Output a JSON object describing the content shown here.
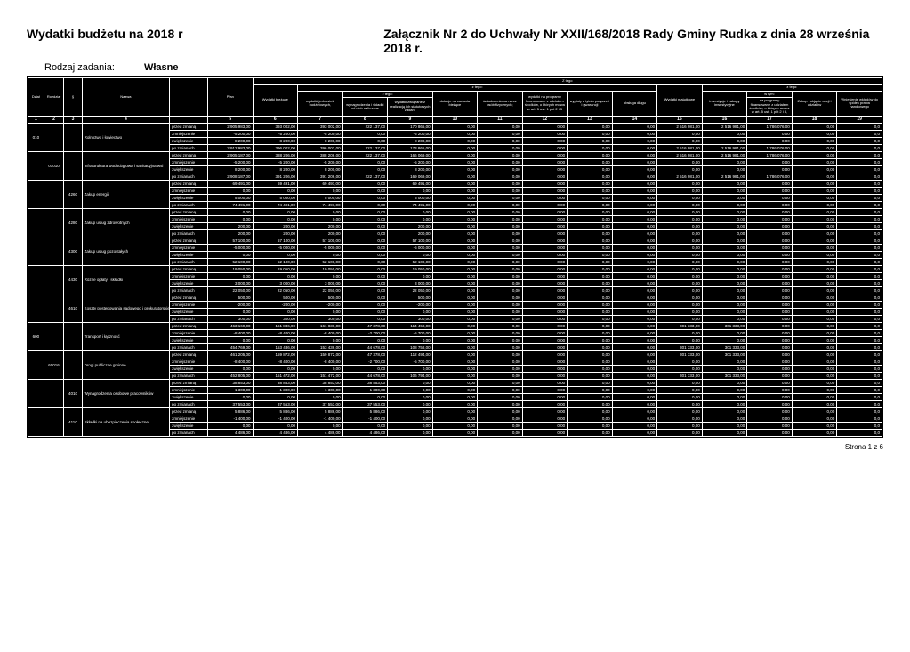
{
  "header": {
    "title_left": "Wydatki budżetu na 2018 r",
    "title_right": "Załącznik Nr 2 do Uchwały Nr XXII/168/2018 Rady Gminy Rudka z dnia 28 września 2018 r.",
    "rodzaj_label": "Rodzaj zadania:",
    "rodzaj_value": "Własne"
  },
  "columns": {
    "dzial": "Dział",
    "rozdzial": "Rozdział",
    "par": "§",
    "nazwa": "Nazwa",
    "plan": "Plan",
    "ztego_top": "Z tego",
    "wydatki_biezace": "Wydatki bieżące",
    "ztego1": "z tego:",
    "wydatki_jednostek": "wydatki jednostek budżetowych,",
    "ztego2": "z tego:",
    "wynagrodzenia": "wynagrodzenia i składki od nich naliczane",
    "wydatki_zwiazane": "wydatki związane z realizacją ich statutowych zadań;",
    "dotacje": "dotacje na zadania bieżące",
    "swiadczenia": "świadczenia na rzecz osób fizycznych;",
    "wydatki_programy": "wydatki na programy finansowane z udziałem środków, o których mowa w art. 5 ust. 1 pkt 2 i 3",
    "wyplaty": "wypłaty z tytułu poręczeń i gwarancji",
    "obsluga": "obsługa długu",
    "wydatki_majatkowe": "Wydatki majątkowe",
    "ztego3": "z tego:",
    "inwestycje": "inwestycje i zakupy inwestycyjne",
    "wtym": "w tym:",
    "na_programy": "na programy finansowane z udziałem środków, o których mowa w art. 5 ust. 1 pkt 2 i 3,",
    "zakup_akcji": "Zakup i objęcie akcji i udziałów",
    "wniesienie": "Wniesienie wkładów do spółek prawa handlowego"
  },
  "row_types": [
    "przed zmianą",
    "zmniejszenie",
    "zwiększenie",
    "po zmianach"
  ],
  "groups": [
    {
      "dzial": "010",
      "rozdzial": "",
      "par": "",
      "nazwa": "Rolnictwo i łowiectwo",
      "rows": [
        [
          "2 905 983,00",
          "393 002,00",
          "393 002,00",
          "222 137,00",
          "170 865,00",
          "0,00",
          "0,00",
          "0,00",
          "0,00",
          "0,00",
          "2 516 981,00",
          "2 516 981,00",
          "1 786 076,00",
          "0,00",
          "0,0"
        ],
        [
          "-5 200,00",
          "-5 200,00",
          "-5 200,00",
          "0,00",
          "-5 200,00",
          "0,00",
          "0,00",
          "0,00",
          "0,00",
          "0,00",
          "0,00",
          "0,00",
          "0,00",
          "0,00",
          "0,0"
        ],
        [
          "8 200,00",
          "8 200,00",
          "8 200,00",
          "0,00",
          "8 200,00",
          "0,00",
          "0,00",
          "0,00",
          "0,00",
          "0,00",
          "0,00",
          "0,00",
          "0,00",
          "0,00",
          "0,0"
        ],
        [
          "2 912 983,00",
          "396 002,00",
          "396 002,00",
          "222 137,00",
          "173 865,00",
          "0,00",
          "0,00",
          "0,00",
          "0,00",
          "0,00",
          "2 516 981,00",
          "2 516 981,00",
          "1 786 076,00",
          "0,00",
          "0,0"
        ]
      ]
    },
    {
      "dzial": "",
      "rozdzial": "01010",
      "par": "",
      "nazwa": "Infrastruktura wodociągowa i sanitacyjna wsi",
      "rows": [
        [
          "2 905 187,00",
          "388 206,00",
          "388 206,00",
          "222 137,00",
          "166 069,00",
          "0,00",
          "0,00",
          "0,00",
          "0,00",
          "0,00",
          "2 516 981,00",
          "2 516 981,00",
          "1 786 076,00",
          "0,00",
          "0,0"
        ],
        [
          "-5 200,00",
          "-5 200,00",
          "-5 200,00",
          "0,00",
          "-5 200,00",
          "0,00",
          "0,00",
          "0,00",
          "0,00",
          "0,00",
          "0,00",
          "0,00",
          "0,00",
          "0,00",
          "0,0"
        ],
        [
          "8 200,00",
          "8 200,00",
          "8 200,00",
          "0,00",
          "8 200,00",
          "0,00",
          "0,00",
          "0,00",
          "0,00",
          "0,00",
          "0,00",
          "0,00",
          "0,00",
          "0,00",
          "0,0"
        ],
        [
          "2 908 187,00",
          "391 206,00",
          "391 206,00",
          "222 137,00",
          "169 069,00",
          "0,00",
          "0,00",
          "0,00",
          "0,00",
          "0,00",
          "2 516 981,00",
          "2 516 981,00",
          "1 786 076,00",
          "0,00",
          "0,0"
        ]
      ]
    },
    {
      "dzial": "",
      "rozdzial": "",
      "par": "4260",
      "nazwa": "Zakup energii",
      "rows": [
        [
          "69 491,00",
          "69 491,00",
          "69 491,00",
          "0,00",
          "69 491,00",
          "0,00",
          "0,00",
          "0,00",
          "0,00",
          "0,00",
          "0,00",
          "0,00",
          "0,00",
          "0,00",
          "0,0"
        ],
        [
          "0,00",
          "0,00",
          "0,00",
          "0,00",
          "0,00",
          "0,00",
          "0,00",
          "0,00",
          "0,00",
          "0,00",
          "0,00",
          "0,00",
          "0,00",
          "0,00",
          "0,0"
        ],
        [
          "5 000,00",
          "5 000,00",
          "5 000,00",
          "0,00",
          "5 000,00",
          "0,00",
          "0,00",
          "0,00",
          "0,00",
          "0,00",
          "0,00",
          "0,00",
          "0,00",
          "0,00",
          "0,0"
        ],
        [
          "74 491,00",
          "74 491,00",
          "74 491,00",
          "0,00",
          "74 491,00",
          "0,00",
          "0,00",
          "0,00",
          "0,00",
          "0,00",
          "0,00",
          "0,00",
          "0,00",
          "0,00",
          "0,0"
        ]
      ]
    },
    {
      "dzial": "",
      "rozdzial": "",
      "par": "4280",
      "nazwa": "Zakup usług zdrowotnych",
      "rows": [
        [
          "0,00",
          "0,00",
          "0,00",
          "0,00",
          "0,00",
          "0,00",
          "0,00",
          "0,00",
          "0,00",
          "0,00",
          "0,00",
          "0,00",
          "0,00",
          "0,00",
          "0,0"
        ],
        [
          "0,00",
          "0,00",
          "0,00",
          "0,00",
          "0,00",
          "0,00",
          "0,00",
          "0,00",
          "0,00",
          "0,00",
          "0,00",
          "0,00",
          "0,00",
          "0,00",
          "0,0"
        ],
        [
          "200,00",
          "200,00",
          "200,00",
          "0,00",
          "200,00",
          "0,00",
          "0,00",
          "0,00",
          "0,00",
          "0,00",
          "0,00",
          "0,00",
          "0,00",
          "0,00",
          "0,0"
        ],
        [
          "200,00",
          "200,00",
          "200,00",
          "0,00",
          "200,00",
          "0,00",
          "0,00",
          "0,00",
          "0,00",
          "0,00",
          "0,00",
          "0,00",
          "0,00",
          "0,00",
          "0,0"
        ]
      ]
    },
    {
      "dzial": "",
      "rozdzial": "",
      "par": "4300",
      "nazwa": "Zakup usług pozostałych",
      "rows": [
        [
          "57 100,00",
          "57 100,00",
          "57 100,00",
          "0,00",
          "57 100,00",
          "0,00",
          "0,00",
          "0,00",
          "0,00",
          "0,00",
          "0,00",
          "0,00",
          "0,00",
          "0,00",
          "0,0"
        ],
        [
          "-5 000,00",
          "-5 000,00",
          "-5 000,00",
          "0,00",
          "-5 000,00",
          "0,00",
          "0,00",
          "0,00",
          "0,00",
          "0,00",
          "0,00",
          "0,00",
          "0,00",
          "0,00",
          "0,0"
        ],
        [
          "0,00",
          "0,00",
          "0,00",
          "0,00",
          "0,00",
          "0,00",
          "0,00",
          "0,00",
          "0,00",
          "0,00",
          "0,00",
          "0,00",
          "0,00",
          "0,00",
          "0,0"
        ],
        [
          "52 100,00",
          "52 100,00",
          "52 100,00",
          "0,00",
          "52 100,00",
          "0,00",
          "0,00",
          "0,00",
          "0,00",
          "0,00",
          "0,00",
          "0,00",
          "0,00",
          "0,00",
          "0,0"
        ]
      ]
    },
    {
      "dzial": "",
      "rozdzial": "",
      "par": "4430",
      "nazwa": "Różne opłaty i składki",
      "rows": [
        [
          "19 050,00",
          "19 050,00",
          "19 050,00",
          "0,00",
          "19 050,00",
          "0,00",
          "0,00",
          "0,00",
          "0,00",
          "0,00",
          "0,00",
          "0,00",
          "0,00",
          "0,00",
          "0,0"
        ],
        [
          "0,00",
          "0,00",
          "0,00",
          "0,00",
          "0,00",
          "0,00",
          "0,00",
          "0,00",
          "0,00",
          "0,00",
          "0,00",
          "0,00",
          "0,00",
          "0,00",
          "0,0"
        ],
        [
          "3 000,00",
          "3 000,00",
          "3 000,00",
          "0,00",
          "3 000,00",
          "0,00",
          "0,00",
          "0,00",
          "0,00",
          "0,00",
          "0,00",
          "0,00",
          "0,00",
          "0,00",
          "0,0"
        ],
        [
          "22 050,00",
          "22 050,00",
          "22 050,00",
          "0,00",
          "22 050,00",
          "0,00",
          "0,00",
          "0,00",
          "0,00",
          "0,00",
          "0,00",
          "0,00",
          "0,00",
          "0,00",
          "0,0"
        ]
      ]
    },
    {
      "dzial": "",
      "rozdzial": "",
      "par": "4610",
      "nazwa": "Koszty postępowania sądowego i prokuratorskiego",
      "rows": [
        [
          "500,00",
          "500,00",
          "500,00",
          "0,00",
          "500,00",
          "0,00",
          "0,00",
          "0,00",
          "0,00",
          "0,00",
          "0,00",
          "0,00",
          "0,00",
          "0,00",
          "0,0"
        ],
        [
          "-200,00",
          "-200,00",
          "-200,00",
          "0,00",
          "-200,00",
          "0,00",
          "0,00",
          "0,00",
          "0,00",
          "0,00",
          "0,00",
          "0,00",
          "0,00",
          "0,00",
          "0,0"
        ],
        [
          "0,00",
          "0,00",
          "0,00",
          "0,00",
          "0,00",
          "0,00",
          "0,00",
          "0,00",
          "0,00",
          "0,00",
          "0,00",
          "0,00",
          "0,00",
          "0,00",
          "0,0"
        ],
        [
          "300,00",
          "300,00",
          "300,00",
          "0,00",
          "300,00",
          "0,00",
          "0,00",
          "0,00",
          "0,00",
          "0,00",
          "0,00",
          "0,00",
          "0,00",
          "0,00",
          "0,0"
        ]
      ]
    },
    {
      "dzial": "600",
      "rozdzial": "",
      "par": "",
      "nazwa": "Transport i łączność",
      "rows": [
        [
          "463 169,00",
          "161 836,00",
          "161 836,00",
          "47 378,00",
          "114 458,00",
          "0,00",
          "0,00",
          "0,00",
          "0,00",
          "0,00",
          "301 333,00",
          "301 333,00",
          "0,00",
          "0,00",
          "0,0"
        ],
        [
          "-8 400,00",
          "-8 400,00",
          "-8 400,00",
          "-2 700,00",
          "-5 700,00",
          "0,00",
          "0,00",
          "0,00",
          "0,00",
          "0,00",
          "0,00",
          "0,00",
          "0,00",
          "0,00",
          "0,0"
        ],
        [
          "0,00",
          "0,00",
          "0,00",
          "0,00",
          "0,00",
          "0,00",
          "0,00",
          "0,00",
          "0,00",
          "0,00",
          "0,00",
          "0,00",
          "0,00",
          "0,00",
          "0,0"
        ],
        [
          "454 769,00",
          "153 436,00",
          "153 436,00",
          "44 678,00",
          "108 758,00",
          "0,00",
          "0,00",
          "0,00",
          "0,00",
          "0,00",
          "301 333,00",
          "301 333,00",
          "0,00",
          "0,00",
          "0,0"
        ]
      ]
    },
    {
      "dzial": "",
      "rozdzial": "60016",
      "par": "",
      "nazwa": "Drogi publiczne gminne",
      "rows": [
        [
          "461 205,00",
          "159 872,00",
          "159 872,00",
          "47 378,00",
          "112 494,00",
          "0,00",
          "0,00",
          "0,00",
          "0,00",
          "0,00",
          "301 333,00",
          "301 333,00",
          "0,00",
          "0,00",
          "0,0"
        ],
        [
          "-8 400,00",
          "-8 400,00",
          "-8 400,00",
          "-2 700,00",
          "-5 700,00",
          "0,00",
          "0,00",
          "0,00",
          "0,00",
          "0,00",
          "0,00",
          "0,00",
          "0,00",
          "0,00",
          "0,0"
        ],
        [
          "0,00",
          "0,00",
          "0,00",
          "0,00",
          "0,00",
          "0,00",
          "0,00",
          "0,00",
          "0,00",
          "0,00",
          "0,00",
          "0,00",
          "0,00",
          "0,00",
          "0,0"
        ],
        [
          "452 805,00",
          "151 472,00",
          "151 472,00",
          "44 678,00",
          "106 794,00",
          "0,00",
          "0,00",
          "0,00",
          "0,00",
          "0,00",
          "301 333,00",
          "301 333,00",
          "0,00",
          "0,00",
          "0,0"
        ]
      ]
    },
    {
      "dzial": "",
      "rozdzial": "",
      "par": "4010",
      "nazwa": "Wynagrodzenia osobowe pracowników",
      "rows": [
        [
          "38 853,00",
          "38 853,00",
          "38 853,00",
          "38 853,00",
          "0,00",
          "0,00",
          "0,00",
          "0,00",
          "0,00",
          "0,00",
          "0,00",
          "0,00",
          "0,00",
          "0,00",
          "0,0"
        ],
        [
          "-1 300,00",
          "-1 300,00",
          "-1 300,00",
          "-1 300,00",
          "0,00",
          "0,00",
          "0,00",
          "0,00",
          "0,00",
          "0,00",
          "0,00",
          "0,00",
          "0,00",
          "0,00",
          "0,0"
        ],
        [
          "0,00",
          "0,00",
          "0,00",
          "0,00",
          "0,00",
          "0,00",
          "0,00",
          "0,00",
          "0,00",
          "0,00",
          "0,00",
          "0,00",
          "0,00",
          "0,00",
          "0,0"
        ],
        [
          "37 553,00",
          "37 553,00",
          "37 553,00",
          "37 553,00",
          "0,00",
          "0,00",
          "0,00",
          "0,00",
          "0,00",
          "0,00",
          "0,00",
          "0,00",
          "0,00",
          "0,00",
          "0,0"
        ]
      ]
    },
    {
      "dzial": "",
      "rozdzial": "",
      "par": "4110",
      "nazwa": "Składki na ubezpieczenia społeczne",
      "rows": [
        [
          "5 886,00",
          "5 886,00",
          "5 886,00",
          "5 886,00",
          "0,00",
          "0,00",
          "0,00",
          "0,00",
          "0,00",
          "0,00",
          "0,00",
          "0,00",
          "0,00",
          "0,00",
          "0,0"
        ],
        [
          "-1 400,00",
          "-1 400,00",
          "-1 400,00",
          "-1 400,00",
          "0,00",
          "0,00",
          "0,00",
          "0,00",
          "0,00",
          "0,00",
          "0,00",
          "0,00",
          "0,00",
          "0,00",
          "0,0"
        ],
        [
          "0,00",
          "0,00",
          "0,00",
          "0,00",
          "0,00",
          "0,00",
          "0,00",
          "0,00",
          "0,00",
          "0,00",
          "0,00",
          "0,00",
          "0,00",
          "0,00",
          "0,0"
        ],
        [
          "4 486,00",
          "4 486,00",
          "4 486,00",
          "4 486,00",
          "0,00",
          "0,00",
          "0,00",
          "0,00",
          "0,00",
          "0,00",
          "0,00",
          "0,00",
          "0,00",
          "0,00",
          "0,0"
        ]
      ]
    }
  ],
  "footer": "Strona 1 z 6"
}
